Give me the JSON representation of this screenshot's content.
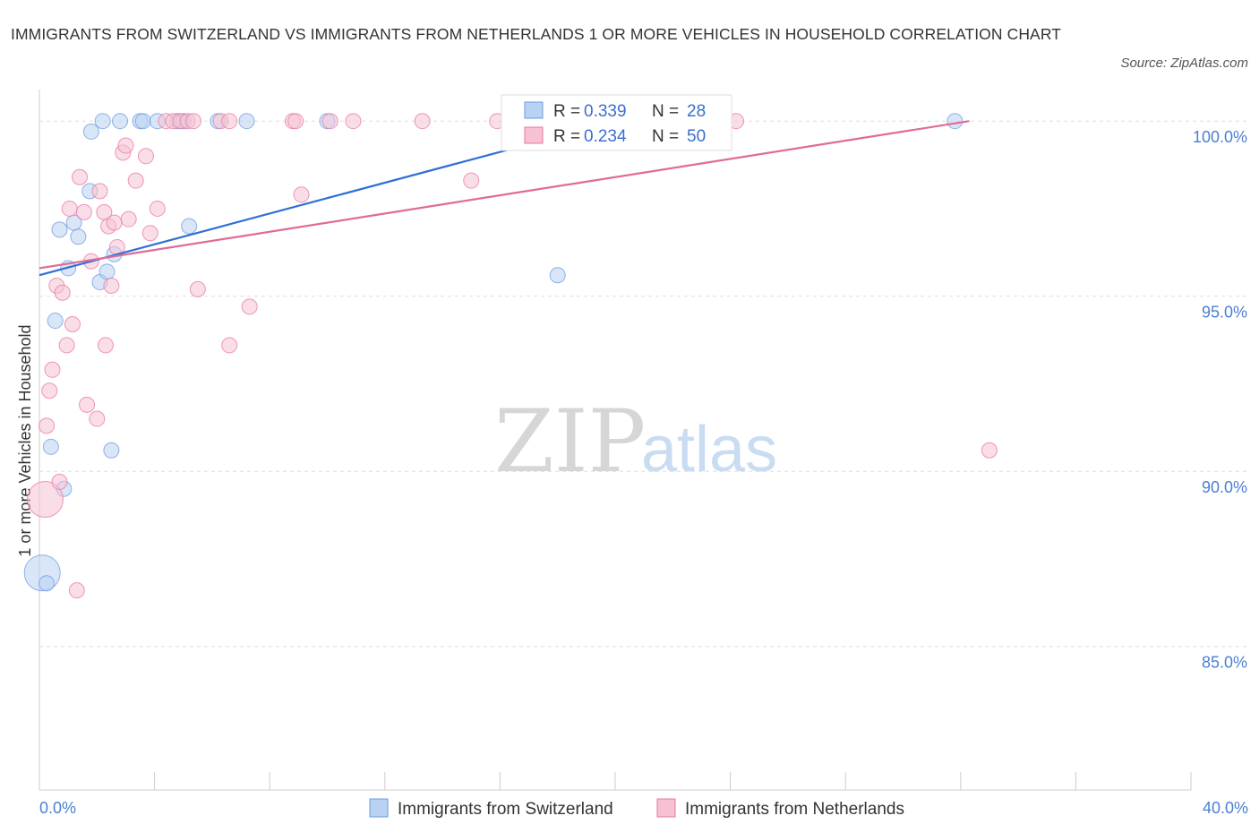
{
  "header": {
    "title": "IMMIGRANTS FROM SWITZERLAND VS IMMIGRANTS FROM NETHERLANDS 1 OR MORE VEHICLES IN HOUSEHOLD CORRELATION CHART",
    "source": "Source: ZipAtlas.com"
  },
  "watermark": {
    "zip": "ZIP",
    "atlas": "atlas"
  },
  "colors": {
    "series_1": "#6b9be0",
    "series_1_fill": "#b9d1f3",
    "series_2": "#e8779c",
    "series_2_fill": "#f6c2d3",
    "axis_label": "#4a7fd4",
    "grid": "#dddddd"
  },
  "stats_box": {
    "rows": [
      {
        "r_label": "R =",
        "r_value": "0.339",
        "n_label": "N =",
        "n_value": "28"
      },
      {
        "r_label": "R =",
        "r_value": "0.234",
        "n_label": "N =",
        "n_value": "50"
      }
    ]
  },
  "chart_data": {
    "type": "scatter",
    "ylabel": "1 or more Vehicles in Household",
    "xlim": [
      0,
      40
    ],
    "ylim": [
      80.9,
      100.9
    ],
    "x_tick_labels": [
      "0.0%",
      "40.0%"
    ],
    "y_ticks": [
      85,
      90,
      95,
      100
    ],
    "y_tick_labels": [
      "85.0%",
      "90.0%",
      "95.0%",
      "100.0%"
    ],
    "grid": true,
    "legend": "bottom-center",
    "series": [
      {
        "name": "Immigrants from Switzerland",
        "trend": {
          "x": [
            0.0,
            20.0
          ],
          "y": [
            95.6,
            100.0
          ]
        },
        "points": [
          [
            0.1,
            87.1
          ],
          [
            0.25,
            86.8
          ],
          [
            0.4,
            90.7
          ],
          [
            0.55,
            94.3
          ],
          [
            0.7,
            96.9
          ],
          [
            0.85,
            89.5
          ],
          [
            1.0,
            95.8
          ],
          [
            1.2,
            97.1
          ],
          [
            1.35,
            96.7
          ],
          [
            1.75,
            98.0
          ],
          [
            1.8,
            99.7
          ],
          [
            2.2,
            100.0
          ],
          [
            2.1,
            95.4
          ],
          [
            2.35,
            95.7
          ],
          [
            2.5,
            90.6
          ],
          [
            2.6,
            96.2
          ],
          [
            2.8,
            100.0
          ],
          [
            3.5,
            100.0
          ],
          [
            3.6,
            100.0
          ],
          [
            4.1,
            100.0
          ],
          [
            4.8,
            100.0
          ],
          [
            5.0,
            100.0
          ],
          [
            5.2,
            97.0
          ],
          [
            6.2,
            100.0
          ],
          [
            7.2,
            100.0
          ],
          [
            10.0,
            100.0
          ],
          [
            18.0,
            95.6
          ],
          [
            31.8,
            100.0
          ]
        ],
        "big_points": [
          [
            0.1,
            87.1
          ]
        ]
      },
      {
        "name": "Immigrants from Netherlands",
        "trend": {
          "x": [
            0.0,
            32.3
          ],
          "y": [
            95.8,
            100.0
          ]
        },
        "points": [
          [
            0.2,
            89.2
          ],
          [
            0.25,
            91.3
          ],
          [
            0.35,
            92.3
          ],
          [
            0.45,
            92.9
          ],
          [
            0.6,
            95.3
          ],
          [
            0.7,
            89.7
          ],
          [
            0.8,
            95.1
          ],
          [
            0.95,
            93.6
          ],
          [
            1.05,
            97.5
          ],
          [
            1.15,
            94.2
          ],
          [
            1.3,
            86.6
          ],
          [
            1.4,
            98.4
          ],
          [
            1.55,
            97.4
          ],
          [
            1.65,
            91.9
          ],
          [
            1.8,
            96.0
          ],
          [
            2.0,
            91.5
          ],
          [
            2.1,
            98.0
          ],
          [
            2.25,
            97.4
          ],
          [
            2.3,
            93.6
          ],
          [
            2.4,
            97.0
          ],
          [
            2.5,
            95.3
          ],
          [
            2.6,
            97.1
          ],
          [
            2.7,
            96.4
          ],
          [
            2.9,
            99.1
          ],
          [
            3.0,
            99.3
          ],
          [
            3.1,
            97.2
          ],
          [
            3.35,
            98.3
          ],
          [
            3.7,
            99.0
          ],
          [
            3.85,
            96.8
          ],
          [
            4.1,
            97.5
          ],
          [
            4.4,
            100.0
          ],
          [
            4.65,
            100.0
          ],
          [
            4.9,
            100.0
          ],
          [
            5.15,
            100.0
          ],
          [
            5.35,
            100.0
          ],
          [
            5.5,
            95.2
          ],
          [
            6.3,
            100.0
          ],
          [
            6.6,
            100.0
          ],
          [
            6.6,
            93.6
          ],
          [
            7.3,
            94.7
          ],
          [
            8.8,
            100.0
          ],
          [
            8.9,
            100.0
          ],
          [
            9.1,
            97.9
          ],
          [
            10.1,
            100.0
          ],
          [
            10.9,
            100.0
          ],
          [
            13.3,
            100.0
          ],
          [
            15.0,
            98.3
          ],
          [
            15.9,
            100.0
          ],
          [
            24.2,
            100.0
          ],
          [
            33.0,
            90.6
          ]
        ],
        "big_points": [
          [
            0.2,
            89.2
          ]
        ]
      }
    ]
  }
}
